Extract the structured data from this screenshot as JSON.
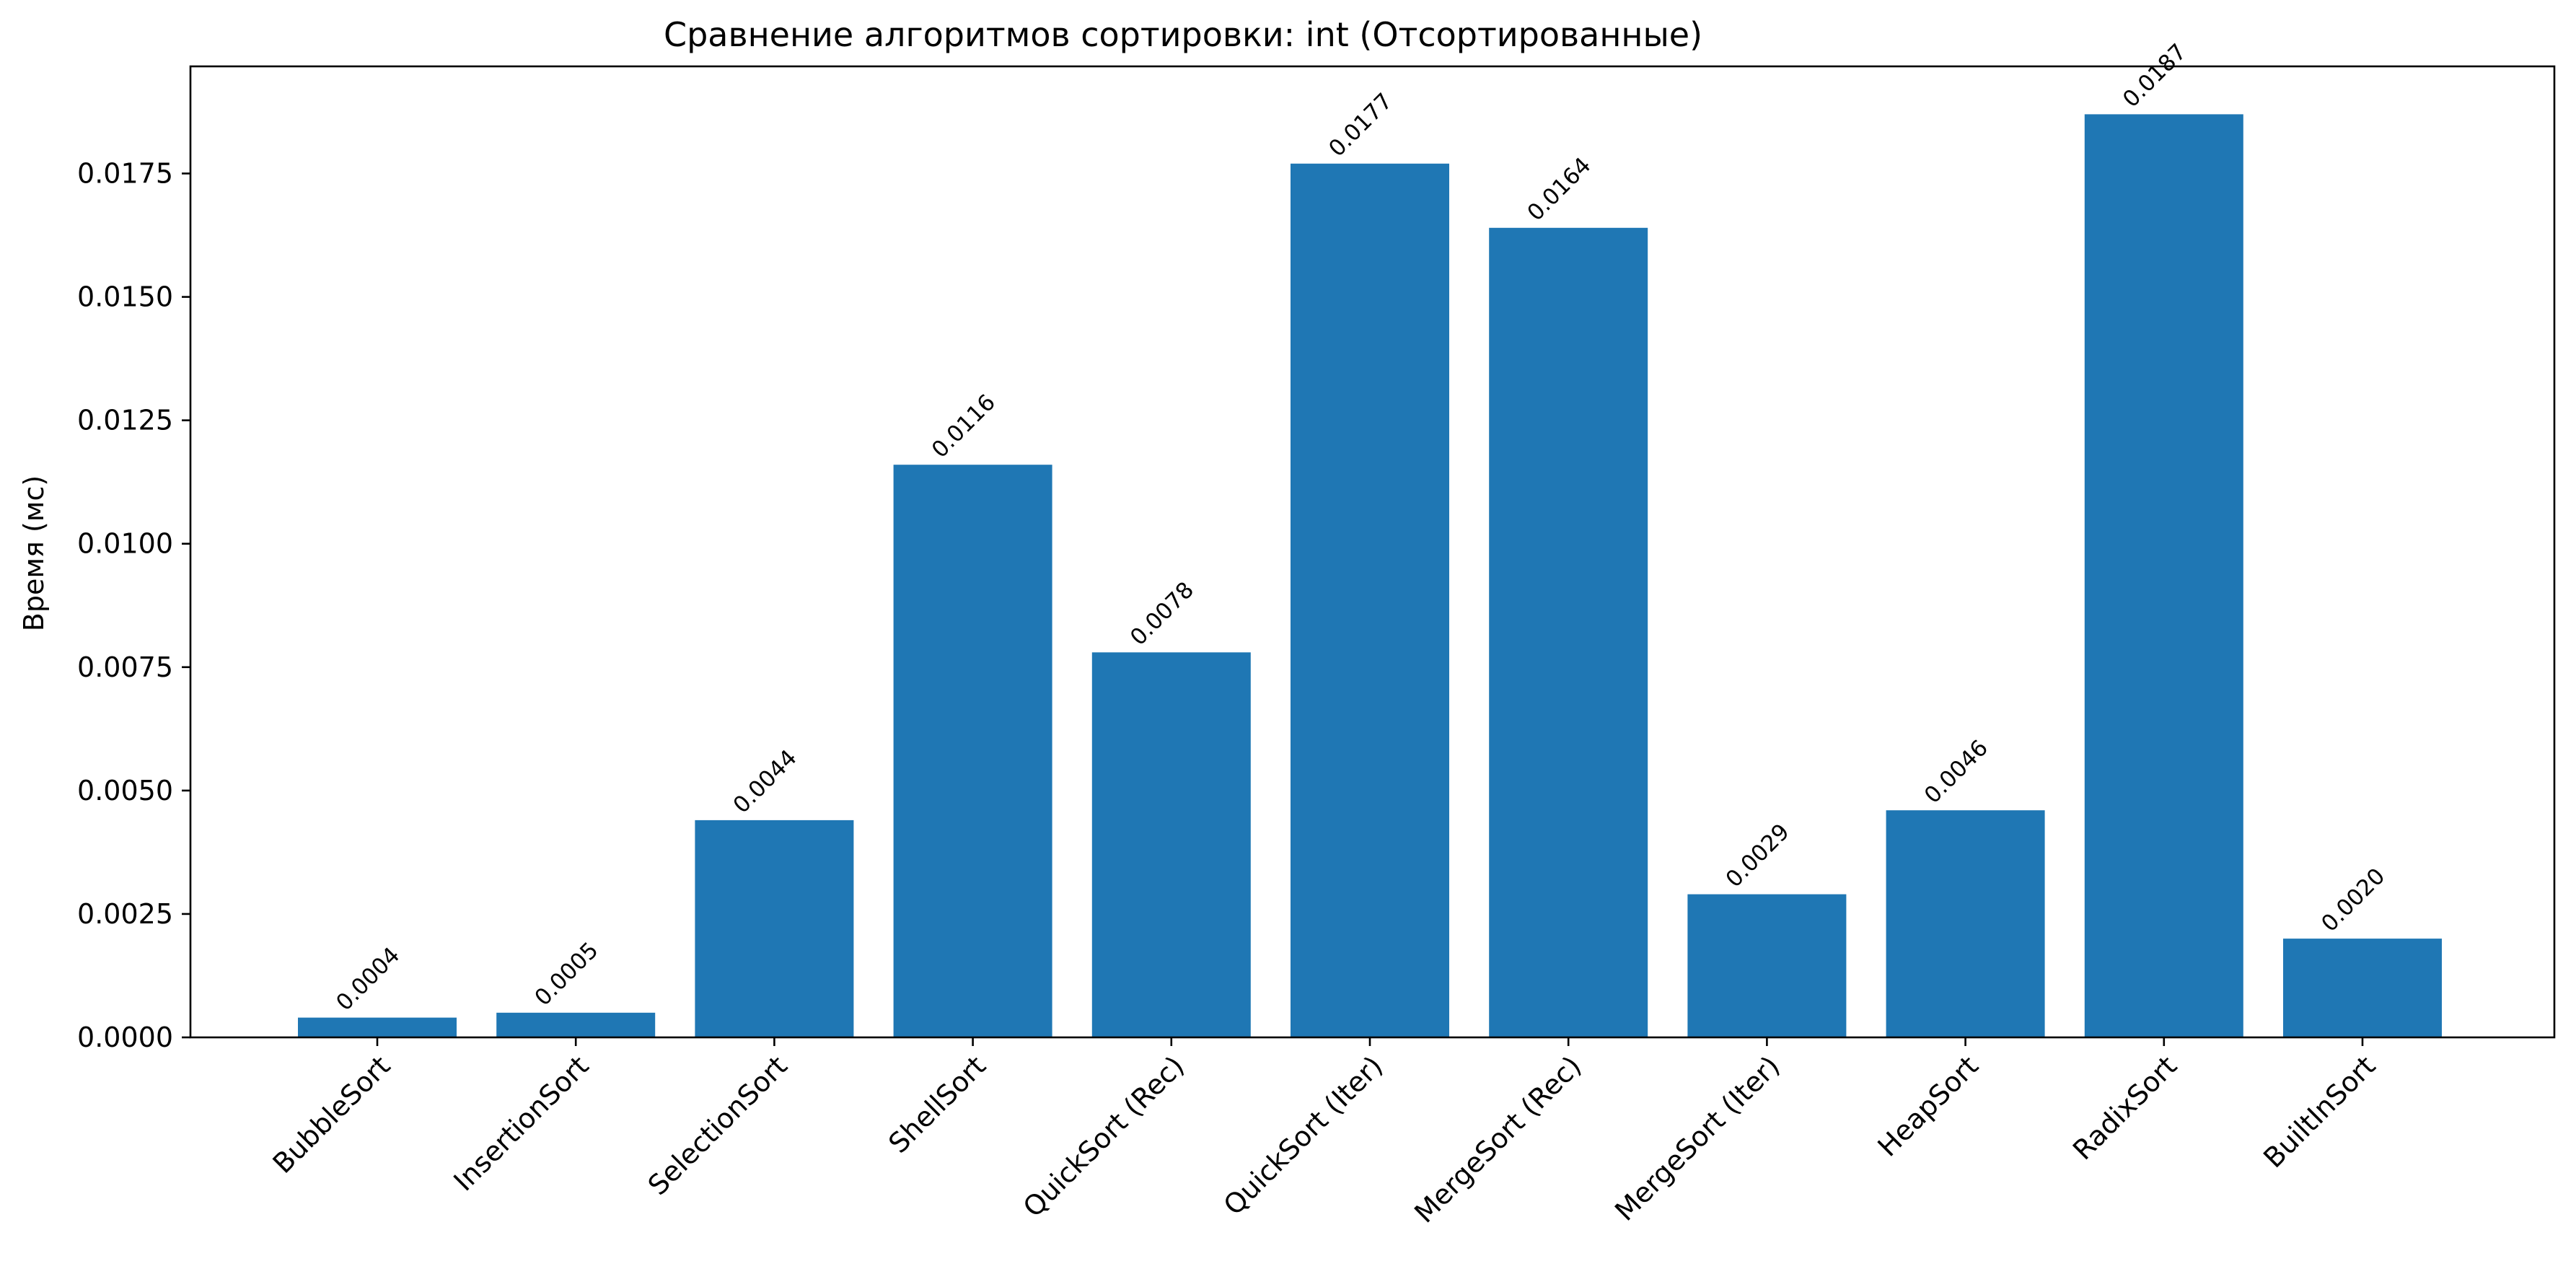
{
  "chart_data": {
    "type": "bar",
    "title": "Сравнение алгоритмов сортировки: int (Отсортированные)",
    "xlabel": "",
    "ylabel": "Время (мс)",
    "categories": [
      "BubbleSort",
      "InsertionSort",
      "SelectionSort",
      "ShellSort",
      "QuickSort (Rec)",
      "QuickSort (Iter)",
      "MergeSort (Rec)",
      "MergeSort (Iter)",
      "HeapSort",
      "RadixSort",
      "BuiltInSort"
    ],
    "values": [
      0.0004,
      0.0005,
      0.0044,
      0.0116,
      0.0078,
      0.0177,
      0.0164,
      0.0029,
      0.0046,
      0.0187,
      0.002
    ],
    "value_labels": [
      "0.0004",
      "0.0005",
      "0.0044",
      "0.0116",
      "0.0078",
      "0.0177",
      "0.0164",
      "0.0029",
      "0.0046",
      "0.0187",
      "0.0020"
    ],
    "yticks": [
      0,
      0.0025,
      0.005,
      0.0075,
      0.01,
      0.0125,
      0.015,
      0.0175
    ],
    "ytick_labels": [
      "0.0000",
      "0.0025",
      "0.0050",
      "0.0075",
      "0.0100",
      "0.0125",
      "0.0150",
      "0.0175"
    ],
    "ylim": [
      0,
      0.01967
    ],
    "bar_color": "#1f77b4",
    "grid": false,
    "legend": false
  }
}
